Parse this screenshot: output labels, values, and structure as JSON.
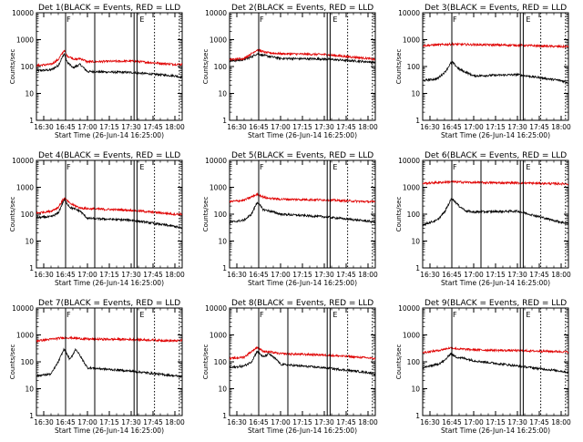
{
  "figure": {
    "x_tick_labels": [
      "16:30",
      "16:45",
      "17:00",
      "17:15",
      "17:30",
      "17:45",
      "18:00"
    ],
    "y_tick_labels": [
      "1",
      "10",
      "100",
      "1000",
      "10000"
    ],
    "xlabel": "Start Time (26-Jun-14 16:25:00)",
    "ylabel": "Counts/sec",
    "colors": {
      "events": "#000000",
      "lld": "#e00000",
      "markers": "#000000"
    }
  },
  "chart_data": [
    {
      "type": "line",
      "title": "Det 1(BLACK = Events, RED = LLD",
      "x_range": [
        "16:25",
        "18:05"
      ],
      "ylim": [
        1,
        10000
      ],
      "y_scale": "log",
      "solid_lines": [
        "16:45",
        "17:05",
        "17:32",
        "17:34"
      ],
      "dotted_lines": [
        "17:46",
        "18:03"
      ],
      "flags": [
        "F",
        "E"
      ],
      "series": [
        {
          "color": "#000000",
          "points": [
            [
              "16:25",
              70
            ],
            [
              "16:35",
              75
            ],
            [
              "16:40",
              110
            ],
            [
              "16:44",
              300
            ],
            [
              "16:46",
              150
            ],
            [
              "16:50",
              90
            ],
            [
              "16:55",
              120
            ],
            [
              "17:00",
              65
            ],
            [
              "17:30",
              60
            ],
            [
              "18:00",
              45
            ],
            [
              "18:05",
              40
            ]
          ]
        },
        {
          "color": "#e00000",
          "points": [
            [
              "16:25",
              110
            ],
            [
              "16:35",
              120
            ],
            [
              "16:40",
              180
            ],
            [
              "16:44",
              400
            ],
            [
              "16:46",
              250
            ],
            [
              "16:52",
              180
            ],
            [
              "16:55",
              200
            ],
            [
              "17:00",
              150
            ],
            [
              "17:30",
              160
            ],
            [
              "18:00",
              120
            ],
            [
              "18:05",
              120
            ]
          ]
        }
      ]
    },
    {
      "type": "line",
      "title": "Det 2(BLACK = Events, RED = LLD",
      "x_range": [
        "16:25",
        "18:05"
      ],
      "ylim": [
        1,
        10000
      ],
      "y_scale": "log",
      "solid_lines": [
        "16:45",
        "17:32",
        "17:34"
      ],
      "dotted_lines": [
        "17:46",
        "18:03"
      ],
      "flags": [
        "F",
        "E"
      ],
      "series": [
        {
          "color": "#000000",
          "points": [
            [
              "16:25",
              160
            ],
            [
              "16:35",
              180
            ],
            [
              "16:40",
              230
            ],
            [
              "16:44",
              300
            ],
            [
              "16:50",
              250
            ],
            [
              "17:00",
              200
            ],
            [
              "17:30",
              190
            ],
            [
              "18:00",
              150
            ],
            [
              "18:05",
              140
            ]
          ]
        },
        {
          "color": "#e00000",
          "points": [
            [
              "16:25",
              180
            ],
            [
              "16:35",
              200
            ],
            [
              "16:44",
              420
            ],
            [
              "16:50",
              330
            ],
            [
              "17:00",
              300
            ],
            [
              "17:30",
              280
            ],
            [
              "18:00",
              200
            ],
            [
              "18:05",
              180
            ]
          ]
        }
      ]
    },
    {
      "type": "line",
      "title": "Det 3(BLACK = Events, RED = LLD",
      "x_range": [
        "16:25",
        "18:05"
      ],
      "ylim": [
        1,
        10000
      ],
      "y_scale": "log",
      "solid_lines": [
        "16:45",
        "17:32",
        "17:34"
      ],
      "dotted_lines": [
        "17:46",
        "18:03"
      ],
      "flags": [
        "F",
        "E"
      ],
      "series": [
        {
          "color": "#000000",
          "points": [
            [
              "16:25",
              30
            ],
            [
              "16:35",
              35
            ],
            [
              "16:40",
              60
            ],
            [
              "16:45",
              150
            ],
            [
              "16:50",
              80
            ],
            [
              "16:55",
              60
            ],
            [
              "17:00",
              45
            ],
            [
              "17:30",
              50
            ],
            [
              "18:00",
              30
            ],
            [
              "18:05",
              25
            ]
          ]
        },
        {
          "color": "#e00000",
          "points": [
            [
              "16:25",
              600
            ],
            [
              "16:45",
              680
            ],
            [
              "17:00",
              650
            ],
            [
              "17:30",
              620
            ],
            [
              "18:00",
              550
            ],
            [
              "18:05",
              560
            ]
          ]
        }
      ]
    },
    {
      "type": "line",
      "title": "Det 4(BLACK = Events, RED = LLD",
      "x_range": [
        "16:25",
        "18:05"
      ],
      "ylim": [
        1,
        10000
      ],
      "y_scale": "log",
      "solid_lines": [
        "16:45",
        "17:05",
        "17:32",
        "17:34"
      ],
      "dotted_lines": [
        "17:46",
        "18:03"
      ],
      "flags": [
        "F",
        "E"
      ],
      "series": [
        {
          "color": "#000000",
          "points": [
            [
              "16:25",
              75
            ],
            [
              "16:35",
              80
            ],
            [
              "16:40",
              110
            ],
            [
              "16:44",
              350
            ],
            [
              "16:48",
              180
            ],
            [
              "16:55",
              130
            ],
            [
              "17:00",
              70
            ],
            [
              "17:30",
              60
            ],
            [
              "18:00",
              35
            ],
            [
              "18:05",
              30
            ]
          ]
        },
        {
          "color": "#e00000",
          "points": [
            [
              "16:25",
              110
            ],
            [
              "16:35",
              130
            ],
            [
              "16:40",
              180
            ],
            [
              "16:44",
              400
            ],
            [
              "16:48",
              250
            ],
            [
              "16:55",
              170
            ],
            [
              "17:00",
              160
            ],
            [
              "17:30",
              140
            ],
            [
              "18:00",
              100
            ],
            [
              "18:05",
              100
            ]
          ]
        }
      ]
    },
    {
      "type": "line",
      "title": "Det 5(BLACK = Events, RED = LLD",
      "x_range": [
        "16:25",
        "18:05"
      ],
      "ylim": [
        1,
        10000
      ],
      "y_scale": "log",
      "solid_lines": [
        "16:45",
        "17:32",
        "17:34"
      ],
      "dotted_lines": [
        "17:46",
        "18:03"
      ],
      "flags": [
        "F",
        "E"
      ],
      "series": [
        {
          "color": "#000000",
          "points": [
            [
              "16:25",
              50
            ],
            [
              "16:35",
              60
            ],
            [
              "16:40",
              100
            ],
            [
              "16:44",
              280
            ],
            [
              "16:48",
              150
            ],
            [
              "16:55",
              120
            ],
            [
              "17:00",
              100
            ],
            [
              "17:30",
              80
            ],
            [
              "18:00",
              55
            ],
            [
              "18:05",
              50
            ]
          ]
        },
        {
          "color": "#e00000",
          "points": [
            [
              "16:25",
              290
            ],
            [
              "16:35",
              330
            ],
            [
              "16:44",
              550
            ],
            [
              "16:50",
              400
            ],
            [
              "17:00",
              360
            ],
            [
              "17:30",
              340
            ],
            [
              "18:00",
              290
            ],
            [
              "18:05",
              290
            ]
          ]
        }
      ]
    },
    {
      "type": "line",
      "title": "Det 6(BLACK = Events, RED = LLD",
      "x_range": [
        "16:25",
        "18:05"
      ],
      "ylim": [
        1,
        10000
      ],
      "y_scale": "log",
      "solid_lines": [
        "16:45",
        "17:05",
        "17:32",
        "17:34"
      ],
      "dotted_lines": [
        "17:46",
        "18:03"
      ],
      "flags": [
        "F",
        "E"
      ],
      "series": [
        {
          "color": "#000000",
          "points": [
            [
              "16:25",
              40
            ],
            [
              "16:35",
              60
            ],
            [
              "16:40",
              120
            ],
            [
              "16:45",
              400
            ],
            [
              "16:50",
              200
            ],
            [
              "16:55",
              130
            ],
            [
              "17:00",
              120
            ],
            [
              "17:30",
              130
            ],
            [
              "18:00",
              50
            ],
            [
              "18:05",
              45
            ]
          ]
        },
        {
          "color": "#e00000",
          "points": [
            [
              "16:25",
              1400
            ],
            [
              "16:45",
              1600
            ],
            [
              "17:00",
              1500
            ],
            [
              "17:30",
              1450
            ],
            [
              "18:00",
              1350
            ],
            [
              "18:05",
              1350
            ]
          ]
        }
      ]
    },
    {
      "type": "line",
      "title": "Det 7(BLACK = Events, RED = LLD",
      "x_range": [
        "16:25",
        "18:05"
      ],
      "ylim": [
        1,
        10000
      ],
      "y_scale": "log",
      "solid_lines": [
        "16:45",
        "17:05",
        "17:32",
        "17:34"
      ],
      "dotted_lines": [
        "17:46",
        "18:03"
      ],
      "flags": [
        "F",
        "E"
      ],
      "series": [
        {
          "color": "#000000",
          "points": [
            [
              "16:25",
              30
            ],
            [
              "16:35",
              35
            ],
            [
              "16:40",
              100
            ],
            [
              "16:44",
              300
            ],
            [
              "16:48",
              120
            ],
            [
              "16:52",
              300
            ],
            [
              "16:58",
              90
            ],
            [
              "17:00",
              60
            ],
            [
              "17:30",
              45
            ],
            [
              "18:00",
              30
            ],
            [
              "18:05",
              28
            ]
          ]
        },
        {
          "color": "#e00000",
          "points": [
            [
              "16:25",
              600
            ],
            [
              "16:45",
              800
            ],
            [
              "17:00",
              700
            ],
            [
              "17:30",
              680
            ],
            [
              "18:00",
              600
            ],
            [
              "18:05",
              620
            ]
          ]
        }
      ]
    },
    {
      "type": "line",
      "title": "Det 8(BLACK = Events, RED = LLD",
      "x_range": [
        "16:25",
        "18:05"
      ],
      "ylim": [
        1,
        10000
      ],
      "y_scale": "log",
      "solid_lines": [
        "16:45",
        "17:05",
        "17:32",
        "17:34"
      ],
      "dotted_lines": [
        "17:46",
        "18:03"
      ],
      "flags": [
        "F",
        "E"
      ],
      "series": [
        {
          "color": "#000000",
          "points": [
            [
              "16:25",
              60
            ],
            [
              "16:35",
              70
            ],
            [
              "16:40",
              100
            ],
            [
              "16:44",
              250
            ],
            [
              "16:48",
              150
            ],
            [
              "16:52",
              200
            ],
            [
              "16:58",
              110
            ],
            [
              "17:00",
              80
            ],
            [
              "17:30",
              60
            ],
            [
              "18:00",
              40
            ],
            [
              "18:05",
              35
            ]
          ]
        },
        {
          "color": "#e00000",
          "points": [
            [
              "16:25",
              130
            ],
            [
              "16:35",
              150
            ],
            [
              "16:44",
              350
            ],
            [
              "16:48",
              250
            ],
            [
              "17:00",
              200
            ],
            [
              "17:30",
              180
            ],
            [
              "18:00",
              140
            ],
            [
              "18:05",
              130
            ]
          ]
        }
      ]
    },
    {
      "type": "line",
      "title": "Det 9(BLACK = Events, RED = LLD",
      "x_range": [
        "16:25",
        "18:05"
      ],
      "ylim": [
        1,
        10000
      ],
      "y_scale": "log",
      "solid_lines": [
        "16:45",
        "17:32",
        "17:34"
      ],
      "dotted_lines": [
        "17:46",
        "18:03"
      ],
      "flags": [
        "F",
        "E"
      ],
      "series": [
        {
          "color": "#000000",
          "points": [
            [
              "16:25",
              60
            ],
            [
              "16:35",
              80
            ],
            [
              "16:40",
              110
            ],
            [
              "16:44",
              200
            ],
            [
              "16:48",
              150
            ],
            [
              "16:55",
              130
            ],
            [
              "17:00",
              110
            ],
            [
              "17:30",
              70
            ],
            [
              "18:00",
              45
            ],
            [
              "18:05",
              40
            ]
          ]
        },
        {
          "color": "#e00000",
          "points": [
            [
              "16:25",
              220
            ],
            [
              "16:35",
              260
            ],
            [
              "16:44",
              330
            ],
            [
              "16:50",
              300
            ],
            [
              "17:00",
              280
            ],
            [
              "17:30",
              260
            ],
            [
              "18:00",
              240
            ],
            [
              "18:05",
              230
            ]
          ]
        }
      ]
    }
  ]
}
